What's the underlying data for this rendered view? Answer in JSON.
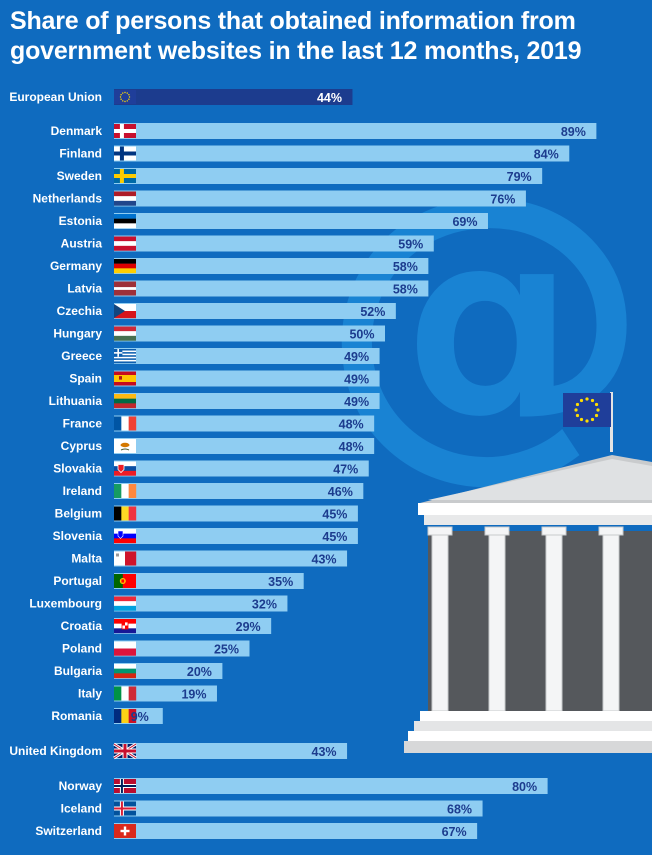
{
  "title": "Share of persons that obtained information from government websites in the last 12 months, 2019",
  "colors": {
    "background": "#0f6bbf",
    "bar": "#8fcdf2",
    "eu_bar": "#1c3c8e",
    "value_text": "#1c3c8e"
  },
  "chart_data": {
    "type": "bar",
    "orientation": "horizontal",
    "title": "Share of persons that obtained information from government websites in the last 12 months, 2019",
    "unit": "%",
    "xlim": [
      0,
      100
    ],
    "grid": false,
    "groups": [
      {
        "rows": [
          {
            "country": "European Union",
            "value": 44,
            "label": "44%",
            "flag": "eu"
          }
        ]
      },
      {
        "rows": [
          {
            "country": "Denmark",
            "value": 89,
            "label": "89%",
            "flag": "dk"
          },
          {
            "country": "Finland",
            "value": 84,
            "label": "84%",
            "flag": "fi"
          },
          {
            "country": "Sweden",
            "value": 79,
            "label": "79%",
            "flag": "se"
          },
          {
            "country": "Netherlands",
            "value": 76,
            "label": "76%",
            "flag": "nl"
          },
          {
            "country": "Estonia",
            "value": 69,
            "label": "69%",
            "flag": "ee"
          },
          {
            "country": "Austria",
            "value": 59,
            "label": "59%",
            "flag": "at"
          },
          {
            "country": "Germany",
            "value": 58,
            "label": "58%",
            "flag": "de"
          },
          {
            "country": "Latvia",
            "value": 58,
            "label": "58%",
            "flag": "lv"
          },
          {
            "country": "Czechia",
            "value": 52,
            "label": "52%",
            "flag": "cz"
          },
          {
            "country": "Hungary",
            "value": 50,
            "label": "50%",
            "flag": "hu"
          },
          {
            "country": "Greece",
            "value": 49,
            "label": "49%",
            "flag": "gr"
          },
          {
            "country": "Spain",
            "value": 49,
            "label": "49%",
            "flag": "es"
          },
          {
            "country": "Lithuania",
            "value": 49,
            "label": "49%",
            "flag": "lt"
          },
          {
            "country": "France",
            "value": 48,
            "label": "48%",
            "flag": "fr"
          },
          {
            "country": "Cyprus",
            "value": 48,
            "label": "48%",
            "flag": "cy"
          },
          {
            "country": "Slovakia",
            "value": 47,
            "label": "47%",
            "flag": "sk"
          },
          {
            "country": "Ireland",
            "value": 46,
            "label": "46%",
            "flag": "ie"
          },
          {
            "country": "Belgium",
            "value": 45,
            "label": "45%",
            "flag": "be"
          },
          {
            "country": "Slovenia",
            "value": 45,
            "label": "45%",
            "flag": "si"
          },
          {
            "country": "Malta",
            "value": 43,
            "label": "43%",
            "flag": "mt"
          },
          {
            "country": "Portugal",
            "value": 35,
            "label": "35%",
            "flag": "pt"
          },
          {
            "country": "Luxembourg",
            "value": 32,
            "label": "32%",
            "flag": "lu"
          },
          {
            "country": "Croatia",
            "value": 29,
            "label": "29%",
            "flag": "hr"
          },
          {
            "country": "Poland",
            "value": 25,
            "label": "25%",
            "flag": "pl"
          },
          {
            "country": "Bulgaria",
            "value": 20,
            "label": "20%",
            "flag": "bg"
          },
          {
            "country": "Italy",
            "value": 19,
            "label": "19%",
            "flag": "it"
          },
          {
            "country": "Romania",
            "value": 9,
            "label": "9%",
            "flag": "ro"
          }
        ]
      },
      {
        "rows": [
          {
            "country": "United Kingdom",
            "value": 43,
            "label": "43%",
            "flag": "gb"
          }
        ]
      },
      {
        "rows": [
          {
            "country": "Norway",
            "value": 80,
            "label": "80%",
            "flag": "no"
          },
          {
            "country": "Iceland",
            "value": 68,
            "label": "68%",
            "flag": "is"
          },
          {
            "country": "Switzerland",
            "value": 67,
            "label": "67%",
            "flag": "ch"
          }
        ]
      }
    ]
  },
  "illustration": {
    "icons": [
      "at-sign-icon",
      "government-building-icon",
      "eu-flag-icon"
    ]
  }
}
